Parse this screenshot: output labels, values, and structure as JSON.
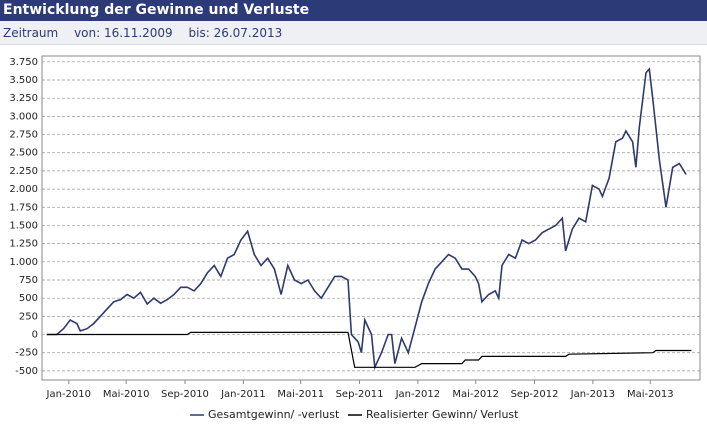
{
  "header": {
    "title": "Entwicklung der Gewinne und Verluste",
    "period_label": "Zeitraum",
    "from": "von: 16.11.2009",
    "to": "bis: 26.07.2013"
  },
  "chart_data": {
    "type": "line",
    "xlim": [
      "2009-11-06",
      "2013-08-13"
    ],
    "xticks": [
      {
        "value": "2010-01-01",
        "label": "Jan-2010"
      },
      {
        "value": "2010-05-01",
        "label": "Mai-2010"
      },
      {
        "value": "2010-09-01",
        "label": "Sep-2010"
      },
      {
        "value": "2011-01-01",
        "label": "Jan-2011"
      },
      {
        "value": "2011-05-01",
        "label": "Mai-2011"
      },
      {
        "value": "2011-09-01",
        "label": "Sep-2011"
      },
      {
        "value": "2012-01-01",
        "label": "Jan-2012"
      },
      {
        "value": "2012-05-01",
        "label": "Mai-2012"
      },
      {
        "value": "2012-09-01",
        "label": "Sep-2012"
      },
      {
        "value": "2013-01-01",
        "label": "Jan-2013"
      },
      {
        "value": "2013-05-01",
        "label": "Mai-2013"
      }
    ],
    "ylim": [
      -625,
      3830
    ],
    "yticks": [
      -500,
      -250,
      0,
      250,
      500,
      750,
      {
        "value": 1000,
        "label": "1.000"
      },
      {
        "value": 1250,
        "label": "1.250"
      },
      {
        "value": 1500,
        "label": "1.500"
      },
      {
        "value": 1750,
        "label": "1.750"
      },
      {
        "value": 2000,
        "label": "2.000"
      },
      {
        "value": 2250,
        "label": "2.250"
      },
      {
        "value": 2500,
        "label": "2.500"
      },
      {
        "value": 2750,
        "label": "2.750"
      },
      {
        "value": 3000,
        "label": "3.000"
      },
      {
        "value": 3250,
        "label": "3.250"
      },
      {
        "value": 3500,
        "label": "3.500"
      },
      {
        "value": 3750,
        "label": "3.750"
      }
    ],
    "grid": true,
    "series": [
      {
        "name": "Gesamtgewinn/ -verlust",
        "color": "#2e3a6e",
        "x": [
          "2009-11-16",
          "2009-12-07",
          "2009-12-21",
          "2010-01-04",
          "2010-01-18",
          "2010-01-25",
          "2010-02-08",
          "2010-02-22",
          "2010-03-08",
          "2010-03-22",
          "2010-04-05",
          "2010-04-19",
          "2010-05-03",
          "2010-05-17",
          "2010-05-31",
          "2010-06-14",
          "2010-06-28",
          "2010-07-12",
          "2010-07-26",
          "2010-08-09",
          "2010-08-23",
          "2010-09-06",
          "2010-09-20",
          "2010-10-04",
          "2010-10-18",
          "2010-11-01",
          "2010-11-15",
          "2010-11-29",
          "2010-12-13",
          "2010-12-27",
          "2011-01-10",
          "2011-01-24",
          "2011-02-07",
          "2011-02-21",
          "2011-03-07",
          "2011-03-21",
          "2011-04-04",
          "2011-04-18",
          "2011-05-02",
          "2011-05-16",
          "2011-05-30",
          "2011-06-13",
          "2011-06-27",
          "2011-07-11",
          "2011-07-25",
          "2011-08-08",
          "2011-08-15",
          "2011-08-29",
          "2011-09-05",
          "2011-09-12",
          "2011-09-26",
          "2011-10-03",
          "2011-10-17",
          "2011-10-31",
          "2011-11-07",
          "2011-11-14",
          "2011-11-28",
          "2011-12-12",
          "2011-12-26",
          "2012-01-09",
          "2012-01-23",
          "2012-02-06",
          "2012-02-20",
          "2012-03-05",
          "2012-03-19",
          "2012-04-02",
          "2012-04-16",
          "2012-04-30",
          "2012-05-07",
          "2012-05-14",
          "2012-05-28",
          "2012-06-11",
          "2012-06-18",
          "2012-06-25",
          "2012-07-09",
          "2012-07-23",
          "2012-08-06",
          "2012-08-20",
          "2012-09-03",
          "2012-09-17",
          "2012-10-01",
          "2012-10-15",
          "2012-10-29",
          "2012-11-05",
          "2012-11-19",
          "2012-12-03",
          "2012-12-17",
          "2012-12-31",
          "2013-01-14",
          "2013-01-21",
          "2013-02-04",
          "2013-02-18",
          "2013-03-04",
          "2013-03-11",
          "2013-03-25",
          "2013-04-01",
          "2013-04-08",
          "2013-04-22",
          "2013-04-29",
          "2013-05-06",
          "2013-05-20",
          "2013-06-03",
          "2013-06-17",
          "2013-07-01",
          "2013-07-15"
        ],
        "values": [
          0,
          0,
          80,
          200,
          150,
          50,
          80,
          150,
          250,
          350,
          450,
          480,
          550,
          500,
          580,
          420,
          500,
          430,
          480,
          550,
          650,
          650,
          600,
          700,
          850,
          950,
          800,
          1050,
          1100,
          1300,
          1420,
          1100,
          950,
          1050,
          900,
          550,
          950,
          750,
          700,
          750,
          600,
          500,
          650,
          800,
          800,
          750,
          0,
          -100,
          -250,
          200,
          0,
          -450,
          -250,
          0,
          0,
          -400,
          -50,
          -250,
          100,
          450,
          700,
          900,
          1000,
          1100,
          1050,
          900,
          900,
          800,
          700,
          450,
          550,
          600,
          500,
          950,
          1100,
          1050,
          1300,
          1250,
          1300,
          1400,
          1450,
          1500,
          1600,
          1150,
          1450,
          1600,
          1550,
          2050,
          2000,
          1900,
          2150,
          2650,
          2700,
          2800,
          2650,
          2300,
          2850,
          3600,
          3650,
          3250,
          2400,
          1750,
          2300,
          2350,
          2200
        ]
      },
      {
        "name": "Realisierter Gewinn/ Verlust",
        "color": "#000000",
        "x": [
          "2009-11-16",
          "2010-09-06",
          "2010-09-13",
          "2011-08-08",
          "2011-08-22",
          "2011-12-26",
          "2012-01-09",
          "2012-04-02",
          "2012-04-09",
          "2012-05-07",
          "2012-05-14",
          "2012-11-05",
          "2012-11-12",
          "2013-05-06",
          "2013-05-13",
          "2013-07-26"
        ],
        "values": [
          0,
          0,
          30,
          30,
          -450,
          -450,
          -400,
          -400,
          -350,
          -350,
          -300,
          -300,
          -270,
          -250,
          -220,
          -220
        ]
      }
    ]
  }
}
